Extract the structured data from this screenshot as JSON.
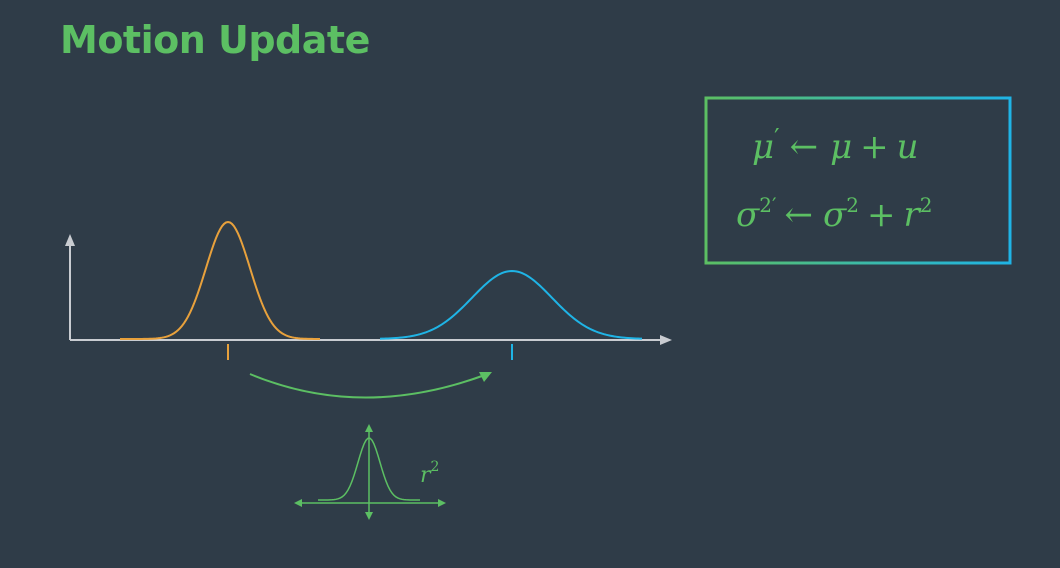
{
  "title": "Motion Update",
  "equations": {
    "line1": {
      "lhs": "μ",
      "lhs_prime": "′",
      "arrow": "←",
      "rhs_a": "μ",
      "plus": "+",
      "rhs_b": "u"
    },
    "line2": {
      "lhs": "σ",
      "lhs_sup": "2′",
      "arrow": "←",
      "rhs_a": "σ",
      "rhs_a_sup": "2",
      "plus": "+",
      "rhs_b": "r",
      "rhs_b_sup": "2"
    }
  },
  "noise_label": {
    "base": "r",
    "sup": "2"
  },
  "colors": {
    "background": "#2f3c48",
    "title": "#5cbf63",
    "prior_curve": "#e8a13c",
    "posterior_curve": "#1fb4e6",
    "arrow": "#5cbf63",
    "axes": "#c9ccd1",
    "equation_text": "#5cbf63"
  }
}
